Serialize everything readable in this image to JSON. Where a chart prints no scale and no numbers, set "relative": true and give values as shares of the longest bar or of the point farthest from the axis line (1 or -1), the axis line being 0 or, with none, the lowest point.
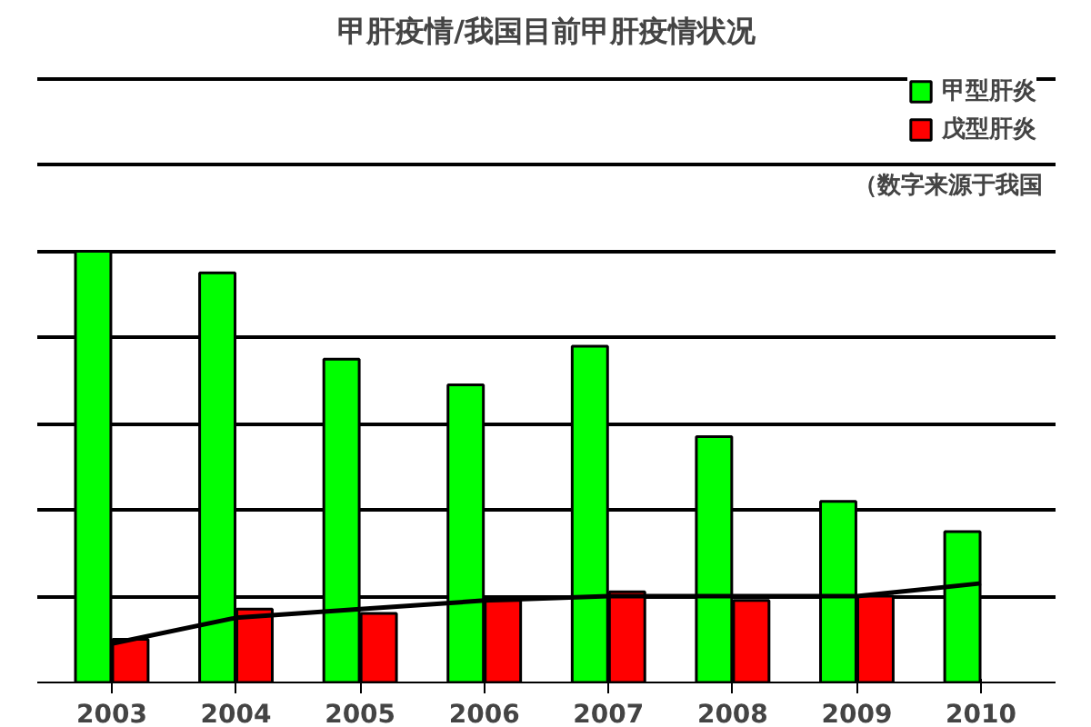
{
  "chart_data": {
    "type": "bar",
    "title": "甲肝疫情/我国目前甲肝疫情状况",
    "annotations": [
      "（数字来源于我国"
    ],
    "relative": true,
    "categories": [
      "2003",
      "2004",
      "2005",
      "2006",
      "2007",
      "2008",
      "2009",
      "2010"
    ],
    "series": [
      {
        "name": "甲型肝炎",
        "color": "#00ff00",
        "values": [
          1.0,
          0.95,
          0.75,
          0.69,
          0.78,
          0.57,
          0.42,
          0.35
        ]
      },
      {
        "name": "戊型肝炎",
        "color": "#ff0000",
        "values": [
          0.1,
          0.17,
          0.16,
          0.19,
          0.21,
          0.19,
          0.2,
          null
        ]
      },
      {
        "type": "line",
        "color": "#000000",
        "values": [
          0.09,
          0.15,
          0.17,
          0.19,
          0.2,
          0.2,
          0.2,
          0.23
        ]
      }
    ],
    "grid": "y",
    "legend": "top right"
  }
}
